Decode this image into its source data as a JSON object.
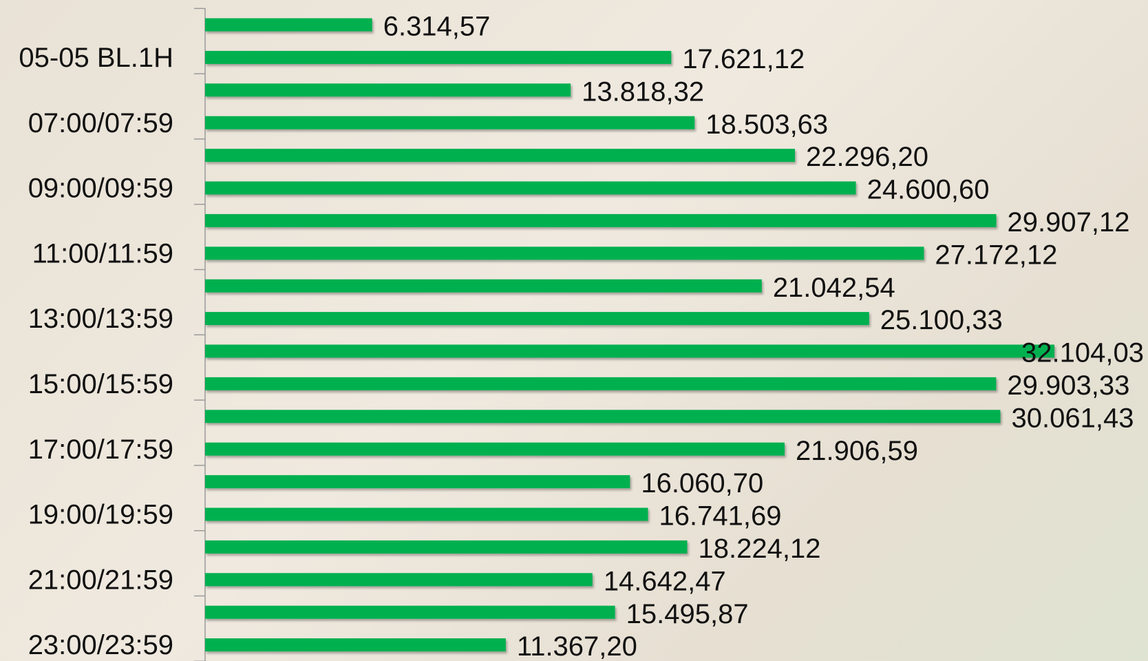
{
  "chart_data": {
    "type": "bar",
    "orientation": "horizontal",
    "color": "#00b050",
    "categories": [
      null,
      "05-05 BL.1H",
      null,
      "07:00/07:59",
      null,
      "09:00/09:59",
      null,
      "11:00/11:59",
      null,
      "13:00/13:59",
      null,
      "15:00/15:59",
      null,
      "17:00/17:59",
      null,
      "19:00/19:59",
      null,
      "21:00/21:59",
      null,
      "23:00/23:59"
    ],
    "values": [
      6314.57,
      17621.12,
      13818.32,
      18503.63,
      22296.2,
      24600.6,
      29907.12,
      27172.12,
      21042.54,
      25100.33,
      32104.03,
      29903.33,
      30061.43,
      21906.59,
      16060.7,
      16741.69,
      18224.12,
      14642.47,
      15495.87,
      11367.2
    ],
    "value_labels": [
      "6.314,57",
      "17.621,12",
      "13.818,32",
      "18.503,63",
      "22.296,20",
      "24.600,60",
      "29.907,12",
      "27.172,12",
      "21.042,54",
      "25.100,33",
      "32.104,03",
      "29.903,33",
      "30.061,43",
      "21.906,59",
      "16.060,70",
      "16.741,69",
      "18.224,12",
      "14.642,47",
      "15.495,87",
      "11.367,20"
    ]
  }
}
